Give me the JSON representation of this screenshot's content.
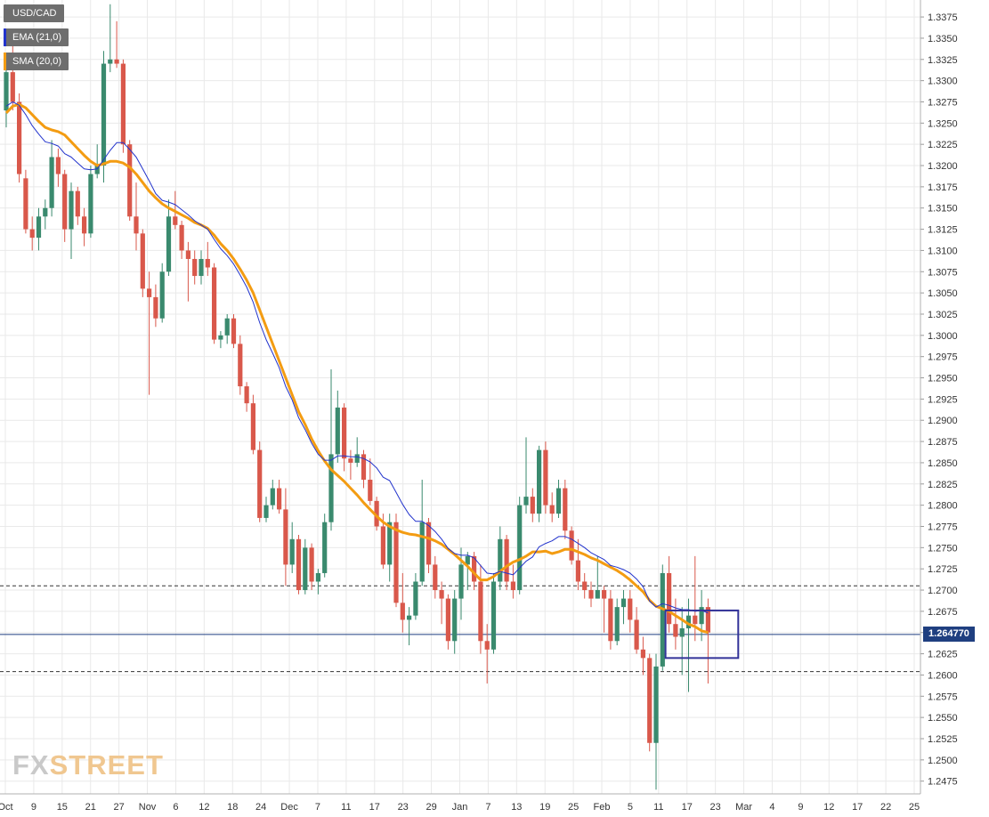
{
  "legend": {
    "symbol": "USD/CAD",
    "ema_label": "EMA (21,0)",
    "sma_label": "SMA (20,0)"
  },
  "colors": {
    "up": "#3a8a6e",
    "down": "#d9584b",
    "ema": "#2233cc",
    "sma": "#f39c12",
    "grid": "#e9e9e9",
    "price_line": "#1f3f80",
    "box": "#333399",
    "logo_gray": "#c9c9c9",
    "logo_orange": "#f0c790"
  },
  "logo": {
    "part1": "FX",
    "part2": "STREET"
  },
  "chart_data": {
    "type": "candlestick",
    "title": "",
    "xlabel": "",
    "ylabel": "",
    "ylim": [
      1.246,
      1.3395
    ],
    "grid": true,
    "y_ticks": [
      "1.2475",
      "1.2500",
      "1.2525",
      "1.2550",
      "1.2575",
      "1.2600",
      "1.2625",
      "1.2650",
      "1.2675",
      "1.2700",
      "1.2725",
      "1.2750",
      "1.2775",
      "1.2800",
      "1.2825",
      "1.2850",
      "1.2875",
      "1.2900",
      "1.2925",
      "1.2950",
      "1.2975",
      "1.3000",
      "1.3025",
      "1.3050",
      "1.3075",
      "1.3100",
      "1.3125",
      "1.3150",
      "1.3175",
      "1.3200",
      "1.3225",
      "1.3250",
      "1.3275",
      "1.3300",
      "1.3325",
      "1.3350",
      "1.3375"
    ],
    "x_tick_labels": [
      "Oct",
      "9",
      "15",
      "21",
      "27",
      "Nov",
      "6",
      "12",
      "18",
      "24",
      "Dec",
      "7",
      "11",
      "17",
      "23",
      "29",
      "Jan",
      "7",
      "13",
      "19",
      "25",
      "Feb",
      "5",
      "11",
      "17",
      "23",
      "Mar",
      "4",
      "9",
      "12",
      "17",
      "22",
      "25"
    ],
    "last_price": 1.26477,
    "last_price_label": "1.264770",
    "horizontal_levels": [
      1.2705,
      1.2604
    ],
    "candles": [
      [
        1.3265,
        1.333,
        1.3245,
        1.331
      ],
      [
        1.331,
        1.3345,
        1.3265,
        1.3275
      ],
      [
        1.3275,
        1.3285,
        1.318,
        1.319
      ],
      [
        1.3185,
        1.3195,
        1.312,
        1.3125
      ],
      [
        1.3125,
        1.314,
        1.31,
        1.3115
      ],
      [
        1.3115,
        1.315,
        1.31,
        1.314
      ],
      [
        1.314,
        1.316,
        1.3125,
        1.315
      ],
      [
        1.315,
        1.323,
        1.314,
        1.321
      ],
      [
        1.321,
        1.322,
        1.3175,
        1.319
      ],
      [
        1.319,
        1.3195,
        1.311,
        1.3125
      ],
      [
        1.3125,
        1.318,
        1.309,
        1.317
      ],
      [
        1.317,
        1.3175,
        1.313,
        1.314
      ],
      [
        1.314,
        1.315,
        1.3105,
        1.312
      ],
      [
        1.312,
        1.32,
        1.3115,
        1.319
      ],
      [
        1.319,
        1.3225,
        1.3185,
        1.32
      ],
      [
        1.32,
        1.3335,
        1.318,
        1.332
      ],
      [
        1.332,
        1.339,
        1.331,
        1.3325
      ],
      [
        1.3325,
        1.337,
        1.3315,
        1.332
      ],
      [
        1.332,
        1.3325,
        1.3215,
        1.3225
      ],
      [
        1.3225,
        1.323,
        1.3135,
        1.314
      ],
      [
        1.314,
        1.318,
        1.31,
        1.312
      ],
      [
        1.312,
        1.3125,
        1.3045,
        1.3055
      ],
      [
        1.3055,
        1.3075,
        1.293,
        1.3045
      ],
      [
        1.3045,
        1.306,
        1.301,
        1.302
      ],
      [
        1.302,
        1.3085,
        1.3015,
        1.3075
      ],
      [
        1.3075,
        1.316,
        1.307,
        1.314
      ],
      [
        1.314,
        1.317,
        1.3125,
        1.313
      ],
      [
        1.313,
        1.3135,
        1.309,
        1.31
      ],
      [
        1.31,
        1.311,
        1.304,
        1.309
      ],
      [
        1.309,
        1.31,
        1.306,
        1.307
      ],
      [
        1.307,
        1.31,
        1.306,
        1.309
      ],
      [
        1.309,
        1.311,
        1.307,
        1.308
      ],
      [
        1.308,
        1.3085,
        1.299,
        1.2995
      ],
      [
        1.2995,
        1.3005,
        1.2985,
        1.3
      ],
      [
        1.3,
        1.3025,
        1.299,
        1.302
      ],
      [
        1.302,
        1.3025,
        1.2985,
        1.299
      ],
      [
        1.299,
        1.3,
        1.293,
        1.294
      ],
      [
        1.294,
        1.2945,
        1.291,
        1.292
      ],
      [
        1.292,
        1.293,
        1.286,
        1.2865
      ],
      [
        1.2865,
        1.2875,
        1.278,
        1.2785
      ],
      [
        1.2785,
        1.281,
        1.278,
        1.28
      ],
      [
        1.28,
        1.283,
        1.2795,
        1.282
      ],
      [
        1.282,
        1.283,
        1.279,
        1.2795
      ],
      [
        1.2795,
        1.282,
        1.2705,
        1.273
      ],
      [
        1.273,
        1.278,
        1.272,
        1.276
      ],
      [
        1.276,
        1.2765,
        1.2695,
        1.27
      ],
      [
        1.27,
        1.276,
        1.2695,
        1.275
      ],
      [
        1.275,
        1.2755,
        1.27,
        1.271
      ],
      [
        1.271,
        1.2725,
        1.2695,
        1.272
      ],
      [
        1.272,
        1.279,
        1.2715,
        1.278
      ],
      [
        1.278,
        1.296,
        1.277,
        1.286
      ],
      [
        1.286,
        1.2935,
        1.285,
        1.2915
      ],
      [
        1.2915,
        1.292,
        1.284,
        1.2855
      ],
      [
        1.2855,
        1.2865,
        1.283,
        1.285
      ],
      [
        1.285,
        1.288,
        1.2845,
        1.286
      ],
      [
        1.286,
        1.2865,
        1.282,
        1.283
      ],
      [
        1.283,
        1.2855,
        1.28,
        1.2805
      ],
      [
        1.2805,
        1.281,
        1.277,
        1.2775
      ],
      [
        1.2775,
        1.279,
        1.2725,
        1.273
      ],
      [
        1.273,
        1.279,
        1.271,
        1.278
      ],
      [
        1.278,
        1.279,
        1.268,
        1.2685
      ],
      [
        1.2685,
        1.272,
        1.265,
        1.2665
      ],
      [
        1.2665,
        1.268,
        1.2635,
        1.267
      ],
      [
        1.267,
        1.272,
        1.2665,
        1.271
      ],
      [
        1.271,
        1.283,
        1.2705,
        1.278
      ],
      [
        1.278,
        1.2785,
        1.272,
        1.273
      ],
      [
        1.273,
        1.274,
        1.269,
        1.27
      ],
      [
        1.27,
        1.271,
        1.266,
        1.269
      ],
      [
        1.269,
        1.2695,
        1.263,
        1.264
      ],
      [
        1.264,
        1.27,
        1.2625,
        1.269
      ],
      [
        1.269,
        1.275,
        1.2665,
        1.273
      ],
      [
        1.273,
        1.2745,
        1.27,
        1.274
      ],
      [
        1.274,
        1.2745,
        1.27,
        1.271
      ],
      [
        1.271,
        1.273,
        1.2625,
        1.264
      ],
      [
        1.264,
        1.266,
        1.259,
        1.263
      ],
      [
        1.263,
        1.272,
        1.2625,
        1.271
      ],
      [
        1.271,
        1.2775,
        1.27,
        1.276
      ],
      [
        1.276,
        1.2765,
        1.27,
        1.271
      ],
      [
        1.271,
        1.273,
        1.269,
        1.27
      ],
      [
        1.27,
        1.281,
        1.2695,
        1.28
      ],
      [
        1.28,
        1.288,
        1.279,
        1.281
      ],
      [
        1.281,
        1.282,
        1.278,
        1.279
      ],
      [
        1.279,
        1.287,
        1.278,
        1.2865
      ],
      [
        1.2865,
        1.2875,
        1.279,
        1.28
      ],
      [
        1.28,
        1.2815,
        1.278,
        1.279
      ],
      [
        1.279,
        1.283,
        1.2785,
        1.282
      ],
      [
        1.282,
        1.283,
        1.276,
        1.277
      ],
      [
        1.277,
        1.2775,
        1.273,
        1.2735
      ],
      [
        1.2735,
        1.276,
        1.27,
        1.271
      ],
      [
        1.271,
        1.272,
        1.269,
        1.27
      ],
      [
        1.27,
        1.271,
        1.268,
        1.269
      ],
      [
        1.269,
        1.274,
        1.269,
        1.27
      ],
      [
        1.27,
        1.2705,
        1.265,
        1.269
      ],
      [
        1.269,
        1.27,
        1.263,
        1.264
      ],
      [
        1.264,
        1.269,
        1.2635,
        1.268
      ],
      [
        1.268,
        1.27,
        1.266,
        1.269
      ],
      [
        1.269,
        1.27,
        1.265,
        1.2665
      ],
      [
        1.2665,
        1.268,
        1.2625,
        1.263
      ],
      [
        1.263,
        1.2645,
        1.26,
        1.262
      ],
      [
        1.262,
        1.2625,
        1.251,
        1.252
      ],
      [
        1.252,
        1.2625,
        1.2465,
        1.261
      ],
      [
        1.261,
        1.273,
        1.2605,
        1.272
      ],
      [
        1.272,
        1.274,
        1.265,
        1.266
      ],
      [
        1.266,
        1.269,
        1.263,
        1.2645
      ],
      [
        1.2645,
        1.268,
        1.26,
        1.2655
      ],
      [
        1.2655,
        1.269,
        1.258,
        1.267
      ],
      [
        1.267,
        1.274,
        1.264,
        1.266
      ],
      [
        1.266,
        1.27,
        1.264,
        1.268
      ],
      [
        1.268,
        1.269,
        1.259,
        1.265
      ]
    ],
    "series": [
      {
        "name": "EMA (21,0)",
        "values": [
          1.327,
          1.3275,
          1.3271,
          1.326,
          1.3247,
          1.3237,
          1.3228,
          1.3226,
          1.3223,
          1.3214,
          1.321,
          1.3203,
          1.3196,
          1.3195,
          1.3196,
          1.3207,
          1.3218,
          1.3227,
          1.3227,
          1.3219,
          1.321,
          1.3196,
          1.3182,
          1.3167,
          1.3159,
          1.3157,
          1.3154,
          1.3148,
          1.3142,
          1.3135,
          1.313,
          1.3125,
          1.3113,
          1.3102,
          1.3094,
          1.3084,
          1.3071,
          1.3057,
          1.3039,
          1.3015,
          1.2995,
          1.2979,
          1.2962,
          1.294,
          1.2924,
          1.2903,
          1.2889,
          1.2873,
          1.286,
          1.2853,
          1.2853,
          1.2858,
          1.2858,
          1.2857,
          1.2857,
          1.2855,
          1.2851,
          1.2844,
          1.2833,
          1.2829,
          1.2815,
          1.2801,
          1.2789,
          1.2781,
          1.2781,
          1.2776,
          1.2769,
          1.276,
          1.2749,
          1.2743,
          1.2741,
          1.2741,
          1.2738,
          1.2729,
          1.272,
          1.2719,
          1.2722,
          1.272,
          1.2718,
          1.2726,
          1.2734,
          1.2739,
          1.2751,
          1.2755,
          1.2758,
          1.2763,
          1.2763,
          1.276,
          1.2755,
          1.275,
          1.2744,
          1.274,
          1.2736,
          1.2729,
          1.2727,
          1.2724,
          1.272,
          1.2713,
          1.2704,
          1.2687,
          1.268,
          1.2684,
          1.2682,
          1.2679,
          1.2677,
          1.2677,
          1.2675,
          1.2676,
          1.2673
        ]
      },
      {
        "name": "SMA (20,0)",
        "values": [
          1.3262,
          1.327,
          1.3272,
          1.3268,
          1.326,
          1.3252,
          1.3245,
          1.3242,
          1.324,
          1.3236,
          1.3228,
          1.322,
          1.3212,
          1.3205,
          1.32,
          1.3202,
          1.3205,
          1.3205,
          1.3203,
          1.3198,
          1.319,
          1.318,
          1.317,
          1.3162,
          1.3155,
          1.315,
          1.3146,
          1.3142,
          1.3138,
          1.3133,
          1.313,
          1.3126,
          1.3118,
          1.3108,
          1.31,
          1.309,
          1.3078,
          1.3065,
          1.305,
          1.303,
          1.301,
          1.299,
          1.297,
          1.295,
          1.293,
          1.291,
          1.2895,
          1.2878,
          1.2864,
          1.2852,
          1.2842,
          1.2835,
          1.2828,
          1.282,
          1.2812,
          1.2803,
          1.2795,
          1.2787,
          1.278,
          1.2775,
          1.2771,
          1.2768,
          1.2766,
          1.2765,
          1.2763,
          1.2761,
          1.2758,
          1.2754,
          1.2748,
          1.2742,
          1.2735,
          1.2728,
          1.272,
          1.2712,
          1.2712,
          1.2716,
          1.2722,
          1.2728,
          1.2733,
          1.2736,
          1.274,
          1.2745,
          1.2745,
          1.2746,
          1.2743,
          1.2745,
          1.2748,
          1.2748,
          1.2745,
          1.2742,
          1.2738,
          1.2735,
          1.2731,
          1.2727,
          1.2723,
          1.2718,
          1.2712,
          1.2705,
          1.2698,
          1.2688,
          1.2681,
          1.2678,
          1.2675,
          1.267,
          1.2665,
          1.266,
          1.2657,
          1.2652,
          1.265
        ]
      }
    ],
    "annotations": [
      {
        "type": "rectangle",
        "from_index": 102,
        "to_index": 111,
        "y_range": [
          1.262,
          1.2676
        ]
      }
    ]
  }
}
